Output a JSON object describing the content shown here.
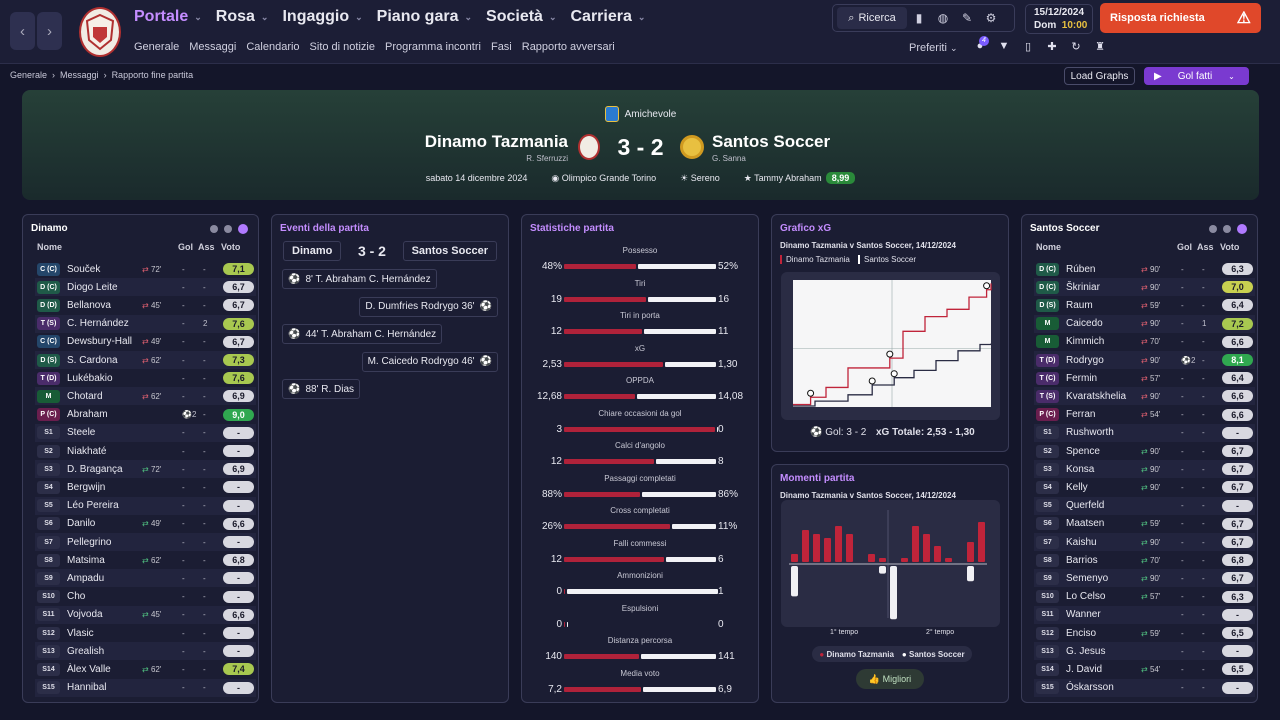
{
  "nav": {
    "back": "‹",
    "forward": "›",
    "menu": [
      {
        "label": "Portale",
        "active": true
      },
      {
        "label": "Rosa"
      },
      {
        "label": "Ingaggio"
      },
      {
        "label": "Piano gara"
      },
      {
        "label": "Società"
      },
      {
        "label": "Carriera"
      }
    ],
    "sub": [
      "Generale",
      "Messaggi",
      "Calendario",
      "Sito di notizie",
      "Programma incontri",
      "Fasi",
      "Rapporto avversari"
    ]
  },
  "toolbar": {
    "search": "Ricerca",
    "date": "15/12/2024",
    "day": "Dom",
    "time": "10:00",
    "alert": "Risposta richiesta",
    "preferiti": "Preferiti",
    "notif_count": "4"
  },
  "breadcrumb": [
    "Generale",
    "Messaggi",
    "Rapporto fine partita"
  ],
  "actions": {
    "load_graphs": "Load Graphs",
    "goals": "Gol fatti"
  },
  "match": {
    "competition": "Amichevole",
    "home": "Dinamo Tazmania",
    "home_mgr": "R. Sferruzzi",
    "away": "Santos Soccer",
    "away_mgr": "G. Sanna",
    "score": "3 - 2",
    "date": "sabato 14 dicembre 2024",
    "stadium": "Olimpico Grande Torino",
    "weather": "Sereno",
    "motm": "Tammy Abraham",
    "motm_rating": "8,99"
  },
  "home_panel": {
    "title": "Dinamo",
    "cols": [
      "Nome",
      "Gol",
      "Ass",
      "Voto"
    ],
    "players": [
      {
        "pos": "C (C)",
        "t": "C",
        "name": "Souček",
        "sub": "72'",
        "subtype": "out",
        "g": "-",
        "a": "-",
        "v": "7,1",
        "vc": "g1"
      },
      {
        "pos": "D (C)",
        "t": "D",
        "name": "Diogo Leite",
        "sub": "",
        "g": "-",
        "a": "-",
        "v": "6,7"
      },
      {
        "pos": "D (D)",
        "t": "D",
        "name": "Bellanova",
        "sub": "45'",
        "subtype": "out",
        "g": "-",
        "a": "-",
        "v": "6,7"
      },
      {
        "pos": "T (S)",
        "t": "T",
        "name": "C. Hernández",
        "sub": "",
        "g": "-",
        "a": "2",
        "v": "7,6",
        "vc": "g1"
      },
      {
        "pos": "C (C)",
        "t": "C",
        "name": "Dewsbury-Hall",
        "sub": "49'",
        "subtype": "out",
        "g": "-",
        "a": "-",
        "v": "6,7"
      },
      {
        "pos": "D (S)",
        "t": "D",
        "name": "S. Cardona",
        "sub": "62'",
        "subtype": "out",
        "g": "-",
        "a": "-",
        "v": "7,3",
        "vc": "g1"
      },
      {
        "pos": "T (D)",
        "t": "T",
        "name": "Lukébakio",
        "sub": "",
        "g": "-",
        "a": "-",
        "v": "7,6",
        "vc": "g1"
      },
      {
        "pos": "M",
        "t": "M",
        "name": "Chotard",
        "sub": "62'",
        "subtype": "out",
        "g": "-",
        "a": "-",
        "v": "6,9"
      },
      {
        "pos": "P (C)",
        "t": "P",
        "name": "Abraham",
        "sub": "",
        "g": "⚽2",
        "a": "-",
        "v": "9,0",
        "vc": "g2"
      },
      {
        "pos": "S1",
        "t": "S",
        "name": "Steele",
        "sub": "",
        "g": "-",
        "a": "-",
        "v": "-"
      },
      {
        "pos": "S2",
        "t": "S",
        "name": "Niakhaté",
        "sub": "",
        "g": "-",
        "a": "-",
        "v": "-"
      },
      {
        "pos": "S3",
        "t": "S",
        "name": "D. Bragança",
        "sub": "72'",
        "subtype": "in",
        "g": "-",
        "a": "-",
        "v": "6,9"
      },
      {
        "pos": "S4",
        "t": "S",
        "name": "Bergwijn",
        "sub": "",
        "g": "-",
        "a": "-",
        "v": "-"
      },
      {
        "pos": "S5",
        "t": "S",
        "name": "Léo Pereira",
        "sub": "",
        "g": "-",
        "a": "-",
        "v": "-"
      },
      {
        "pos": "S6",
        "t": "S",
        "name": "Danilo",
        "sub": "49'",
        "subtype": "in",
        "g": "-",
        "a": "-",
        "v": "6,6"
      },
      {
        "pos": "S7",
        "t": "S",
        "name": "Pellegrino",
        "sub": "",
        "g": "-",
        "a": "-",
        "v": "-"
      },
      {
        "pos": "S8",
        "t": "S",
        "name": "Matsima",
        "sub": "62'",
        "subtype": "in",
        "g": "-",
        "a": "-",
        "v": "6,8"
      },
      {
        "pos": "S9",
        "t": "S",
        "name": "Ampadu",
        "sub": "",
        "g": "-",
        "a": "-",
        "v": "-"
      },
      {
        "pos": "S10",
        "t": "S",
        "name": "Cho",
        "sub": "",
        "g": "-",
        "a": "-",
        "v": "-"
      },
      {
        "pos": "S11",
        "t": "S",
        "name": "Vojvoda",
        "sub": "45'",
        "subtype": "in",
        "g": "-",
        "a": "-",
        "v": "6,6"
      },
      {
        "pos": "S12",
        "t": "S",
        "name": "Vlasic",
        "sub": "",
        "g": "-",
        "a": "-",
        "v": "-"
      },
      {
        "pos": "S13",
        "t": "S",
        "name": "Grealish",
        "sub": "",
        "g": "-",
        "a": "-",
        "v": "-"
      },
      {
        "pos": "S14",
        "t": "S",
        "name": "Àlex Valle",
        "sub": "62'",
        "subtype": "in",
        "g": "-",
        "a": "-",
        "v": "7,4",
        "vc": "g1"
      },
      {
        "pos": "S15",
        "t": "S",
        "name": "Hannibal",
        "sub": "",
        "g": "-",
        "a": "-",
        "v": "-"
      }
    ]
  },
  "away_panel": {
    "title": "Santos Soccer",
    "cols": [
      "Nome",
      "Gol",
      "Ass",
      "Voto"
    ],
    "players": [
      {
        "pos": "D (C)",
        "t": "D",
        "name": "Rúben",
        "sub": "90'",
        "subtype": "out",
        "g": "-",
        "a": "-",
        "v": "6,3"
      },
      {
        "pos": "D (C)",
        "t": "D",
        "name": "Škriniar",
        "sub": "90'",
        "subtype": "out",
        "g": "-",
        "a": "-",
        "v": "7,0",
        "vc": "g3"
      },
      {
        "pos": "D (S)",
        "t": "D",
        "name": "Raum",
        "sub": "59'",
        "subtype": "out",
        "g": "-",
        "a": "-",
        "v": "6,4"
      },
      {
        "pos": "M",
        "t": "M",
        "name": "Caicedo",
        "sub": "90'",
        "subtype": "out",
        "g": "-",
        "a": "1",
        "v": "7,2",
        "vc": "g1"
      },
      {
        "pos": "M",
        "t": "M",
        "name": "Kimmich",
        "sub": "70'",
        "subtype": "out",
        "g": "-",
        "a": "-",
        "v": "6,6"
      },
      {
        "pos": "T (D)",
        "t": "T",
        "name": "Rodrygo",
        "sub": "90'",
        "subtype": "out",
        "g": "⚽2",
        "a": "-",
        "v": "8,1",
        "vc": "g2"
      },
      {
        "pos": "T (C)",
        "t": "T",
        "name": "Fermin",
        "sub": "57'",
        "subtype": "out",
        "g": "-",
        "a": "-",
        "v": "6,4"
      },
      {
        "pos": "T (S)",
        "t": "T",
        "name": "Kvaratskhelia",
        "sub": "90'",
        "subtype": "out",
        "g": "-",
        "a": "-",
        "v": "6,6"
      },
      {
        "pos": "P (C)",
        "t": "P",
        "name": "Ferran",
        "sub": "54'",
        "subtype": "out",
        "g": "-",
        "a": "-",
        "v": "6,6"
      },
      {
        "pos": "S1",
        "t": "S",
        "name": "Rushworth",
        "sub": "",
        "g": "-",
        "a": "-",
        "v": "-"
      },
      {
        "pos": "S2",
        "t": "S",
        "name": "Spence",
        "sub": "90'",
        "subtype": "in",
        "g": "-",
        "a": "-",
        "v": "6,7"
      },
      {
        "pos": "S3",
        "t": "S",
        "name": "Konsa",
        "sub": "90'",
        "subtype": "in",
        "g": "-",
        "a": "-",
        "v": "6,7"
      },
      {
        "pos": "S4",
        "t": "S",
        "name": "Kelly",
        "sub": "90'",
        "subtype": "in",
        "g": "-",
        "a": "-",
        "v": "6,7"
      },
      {
        "pos": "S5",
        "t": "S",
        "name": "Querfeld",
        "sub": "",
        "g": "-",
        "a": "-",
        "v": "-"
      },
      {
        "pos": "S6",
        "t": "S",
        "name": "Maatsen",
        "sub": "59'",
        "subtype": "in",
        "g": "-",
        "a": "-",
        "v": "6,7"
      },
      {
        "pos": "S7",
        "t": "S",
        "name": "Kaishu",
        "sub": "90'",
        "subtype": "in",
        "g": "-",
        "a": "-",
        "v": "6,7"
      },
      {
        "pos": "S8",
        "t": "S",
        "name": "Barrios",
        "sub": "70'",
        "subtype": "in",
        "g": "-",
        "a": "-",
        "v": "6,8"
      },
      {
        "pos": "S9",
        "t": "S",
        "name": "Semenyo",
        "sub": "90'",
        "subtype": "in",
        "g": "-",
        "a": "-",
        "v": "6,7"
      },
      {
        "pos": "S10",
        "t": "S",
        "name": "Lo Celso",
        "sub": "57'",
        "subtype": "in",
        "g": "-",
        "a": "-",
        "v": "6,3"
      },
      {
        "pos": "S11",
        "t": "S",
        "name": "Wanner",
        "sub": "",
        "g": "-",
        "a": "-",
        "v": "-"
      },
      {
        "pos": "S12",
        "t": "S",
        "name": "Enciso",
        "sub": "59'",
        "subtype": "in",
        "g": "-",
        "a": "-",
        "v": "6,5"
      },
      {
        "pos": "S13",
        "t": "S",
        "name": "G. Jesus",
        "sub": "",
        "g": "-",
        "a": "-",
        "v": "-"
      },
      {
        "pos": "S14",
        "t": "S",
        "name": "J. David",
        "sub": "54'",
        "subtype": "in",
        "g": "-",
        "a": "-",
        "v": "6,5"
      },
      {
        "pos": "S15",
        "t": "S",
        "name": "Óskarsson",
        "sub": "",
        "g": "-",
        "a": "-",
        "v": "-"
      }
    ]
  },
  "events": {
    "title": "Eventi della partita",
    "home": "Dinamo",
    "away": "Santos Soccer",
    "score": "3 - 2",
    "items": [
      {
        "side": "home",
        "text": "8' T. Abraham C. Hernández"
      },
      {
        "side": "away",
        "text": "D. Dumfries Rodrygo 36'"
      },
      {
        "side": "home",
        "text": "44' T. Abraham C. Hernández"
      },
      {
        "side": "away",
        "text": "M. Caicedo Rodrygo 46'"
      },
      {
        "side": "home",
        "text": "88' R. Dias"
      }
    ]
  },
  "stats": {
    "title": "Statistiche partita",
    "rows": [
      {
        "label": "Possesso",
        "h": "48%",
        "a": "52%",
        "hv": 48,
        "av": 52
      },
      {
        "label": "Tiri",
        "h": "19",
        "a": "16",
        "hv": 19,
        "av": 16
      },
      {
        "label": "Tiri in porta",
        "h": "12",
        "a": "11",
        "hv": 12,
        "av": 11
      },
      {
        "label": "xG",
        "h": "2,53",
        "a": "1,30",
        "hv": 2.53,
        "av": 1.3
      },
      {
        "label": "OPPDA",
        "h": "12,68",
        "a": "14,08",
        "hv": 12.68,
        "av": 14.08
      },
      {
        "label": "Chiare occasioni da gol",
        "h": "3",
        "a": "0",
        "hv": 3,
        "av": 0
      },
      {
        "label": "Calci d'angolo",
        "h": "12",
        "a": "8",
        "hv": 12,
        "av": 8
      },
      {
        "label": "Passaggi completati",
        "h": "88%",
        "a": "86%",
        "hv": 88,
        "av": 86
      },
      {
        "label": "Cross completati",
        "h": "26%",
        "a": "11%",
        "hv": 26,
        "av": 11
      },
      {
        "label": "Falli commessi",
        "h": "12",
        "a": "6",
        "hv": 12,
        "av": 6
      },
      {
        "label": "Ammonizioni",
        "h": "0",
        "a": "1",
        "hv": 0,
        "av": 1
      },
      {
        "label": "Espulsioni",
        "h": "0",
        "a": "0",
        "hv": 0,
        "av": 0
      },
      {
        "label": "Distanza percorsa",
        "h": "140",
        "a": "141",
        "hv": 140,
        "av": 141
      },
      {
        "label": "Media voto",
        "h": "7,2",
        "a": "6,9",
        "hv": 7.2,
        "av": 6.9
      }
    ]
  },
  "xg": {
    "title": "Grafico xG",
    "subtitle": "Dinamo Tazmania v Santos Soccer, 14/12/2024",
    "legend_home": "Dinamo Tazmania",
    "legend_away": "Santos Soccer",
    "goals": "Gol: 3 - 2",
    "total": "xG Totale: 2,53 - 1,30"
  },
  "moments": {
    "title": "Momenti partita",
    "subtitle": "Dinamo Tazmania v Santos Soccer, 14/12/2024",
    "half1": "1° tempo",
    "half2": "2° tempo",
    "legend_home": "Dinamo Tazmania",
    "legend_away": "Santos Soccer",
    "best": "Migliori"
  },
  "chart_data": [
    {
      "type": "line",
      "title": "Grafico xG",
      "series": [
        {
          "name": "Dinamo Tazmania",
          "color": "#c0243a",
          "x": [
            0,
            8,
            15,
            25,
            44,
            50,
            60,
            70,
            80,
            88,
            90
          ],
          "y": [
            0.05,
            0.2,
            0.4,
            0.8,
            1.0,
            1.55,
            1.85,
            2.0,
            2.25,
            2.4,
            2.53
          ]
        },
        {
          "name": "Santos Soccer",
          "color": "#ffffff",
          "x": [
            0,
            10,
            25,
            36,
            46,
            55,
            65,
            75,
            85,
            90
          ],
          "y": [
            0.02,
            0.12,
            0.25,
            0.45,
            0.6,
            0.75,
            0.95,
            1.15,
            1.28,
            1.3
          ]
        }
      ],
      "goals_home": [
        8,
        44,
        88
      ],
      "goals_away": [
        36,
        46
      ]
    },
    {
      "type": "bar",
      "title": "Momenti partita",
      "home_color": "#c0243a",
      "away_color": "#f0f0f4",
      "home": [
        0.2,
        0.8,
        0.7,
        0.6,
        0.9,
        0.7,
        0,
        0.2,
        0.1,
        0,
        0.1,
        0.9,
        0.7,
        0.4,
        0.1,
        0,
        0.5,
        1.0
      ],
      "away": [
        0.8,
        0,
        0,
        0,
        0,
        0,
        0,
        0,
        0.2,
        1.4,
        0,
        0,
        0,
        0,
        0,
        0,
        0.4,
        0
      ]
    }
  ]
}
